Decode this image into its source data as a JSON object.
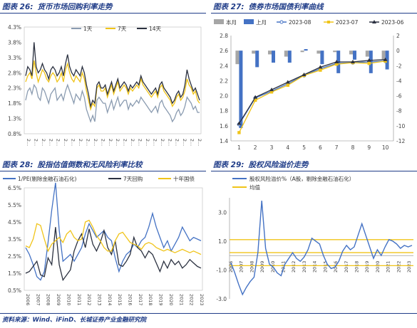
{
  "source_note": "资料来源：Wind、iFinD、长城证券产业金融研究院",
  "panels": {
    "p26": {
      "num": "图表 26:",
      "title": "货币市场回购利率走势"
    },
    "p27": {
      "num": "图表 27:",
      "title": "债券市场国债利率曲线"
    },
    "p28": {
      "num": "图表 28:",
      "title": "股指估值倒数和无风险利率比较"
    },
    "p29": {
      "num": "图表 29:",
      "title": "股权风险溢价走势"
    }
  },
  "chart_data": [
    {
      "id": "repo",
      "type": "line",
      "title": "货币市场回购利率走势",
      "ylim": [
        0.8,
        4.3
      ],
      "y_ticks": [
        "4.3%",
        "3.8%",
        "3.3%",
        "2.8%",
        "2.3%",
        "1.8%",
        "1.3%",
        "0.8%"
      ],
      "y_tick_values": [
        4.3,
        3.8,
        3.3,
        2.8,
        2.3,
        1.8,
        1.3,
        0.8
      ],
      "x_tick_label": "2...",
      "x_tick_count": 24,
      "legend_position": "top-center",
      "series": [
        {
          "name": "1天",
          "color": "#8a9bb0",
          "values": [
            1.9,
            2.2,
            2.3,
            2.1,
            2.4,
            2.3,
            2.0,
            1.9,
            2.3,
            2.2,
            2.0,
            1.8,
            2.1,
            2.2,
            2.3,
            1.9,
            2.0,
            2.1,
            1.9,
            2.2,
            2.4,
            2.2,
            2.0,
            1.8,
            2.1,
            2.0,
            1.9,
            2.2,
            2.0,
            1.6,
            1.4,
            1.2,
            1.4,
            1.2,
            1.9,
            2.0,
            1.9,
            1.8,
            1.8,
            1.5,
            1.7,
            1.9,
            1.6,
            1.8,
            2.0,
            1.7,
            1.8,
            1.9,
            1.9,
            1.6,
            1.8,
            1.7,
            1.8,
            1.9,
            1.8,
            2.0,
            1.9,
            1.8,
            1.7,
            1.6,
            1.5,
            1.6,
            1.7,
            1.5,
            1.8,
            1.9,
            1.7,
            1.6,
            1.5,
            1.4,
            1.2,
            1.3,
            1.5,
            1.6,
            1.4,
            1.5,
            1.7,
            2.0,
            1.9,
            1.8,
            1.6,
            1.7,
            1.5,
            1.5
          ]
        },
        {
          "name": "7天",
          "color": "#f0c419",
          "values": [
            2.5,
            2.7,
            2.8,
            2.6,
            3.2,
            2.8,
            2.5,
            2.7,
            2.9,
            2.8,
            2.6,
            2.5,
            2.7,
            2.8,
            2.7,
            2.5,
            2.6,
            2.8,
            2.5,
            2.9,
            3.1,
            2.8,
            2.6,
            2.5,
            2.7,
            2.6,
            2.5,
            2.8,
            2.6,
            2.2,
            1.9,
            1.6,
            1.8,
            1.7,
            2.3,
            2.4,
            2.2,
            2.2,
            2.3,
            2.0,
            2.2,
            2.4,
            2.1,
            2.3,
            2.5,
            2.2,
            2.3,
            2.4,
            2.3,
            2.1,
            2.3,
            2.2,
            2.3,
            2.4,
            2.3,
            2.6,
            2.4,
            2.3,
            2.2,
            2.1,
            2.0,
            2.1,
            2.2,
            2.0,
            2.3,
            2.4,
            2.2,
            2.1,
            2.0,
            1.9,
            1.7,
            1.8,
            2.0,
            2.1,
            1.9,
            2.0,
            2.2,
            2.6,
            2.4,
            2.3,
            2.1,
            2.2,
            1.9,
            1.8
          ]
        },
        {
          "name": "14天",
          "color": "#2b3140",
          "values": [
            2.7,
            3.0,
            2.9,
            2.7,
            3.8,
            3.0,
            2.8,
            2.9,
            3.1,
            2.9,
            2.8,
            2.6,
            2.9,
            3.0,
            2.9,
            2.7,
            2.8,
            3.0,
            2.7,
            3.1,
            3.4,
            3.0,
            2.8,
            2.7,
            2.9,
            2.8,
            2.7,
            3.0,
            2.8,
            2.4,
            2.1,
            1.7,
            1.9,
            1.8,
            2.4,
            2.5,
            2.3,
            2.3,
            2.4,
            2.1,
            2.3,
            2.5,
            2.2,
            2.4,
            2.6,
            2.3,
            2.4,
            2.5,
            2.4,
            2.2,
            2.4,
            2.3,
            2.4,
            2.5,
            2.4,
            2.7,
            2.5,
            2.4,
            2.3,
            2.2,
            2.1,
            2.2,
            2.3,
            2.1,
            2.4,
            2.5,
            2.3,
            2.2,
            2.1,
            2.0,
            1.8,
            1.9,
            2.1,
            2.2,
            2.0,
            2.1,
            2.4,
            2.9,
            2.6,
            2.4,
            2.2,
            2.3,
            2.1,
            1.9
          ]
        }
      ]
    },
    {
      "id": "treasury",
      "type": "line",
      "title": "债券市场国债利率曲线",
      "categories": [
        "1",
        "2",
        "3",
        "4",
        "5",
        "6",
        "7",
        "8",
        "9",
        "10"
      ],
      "ylim_left": [
        1.4,
        2.8
      ],
      "ylim_right": [
        -12,
        2
      ],
      "y_ticks_left": [
        "2.8",
        "2.6",
        "2.4",
        "2.2",
        "2.0",
        "1.8",
        "1.6",
        "1.4"
      ],
      "y_tick_values_left": [
        2.8,
        2.6,
        2.4,
        2.2,
        2.0,
        1.8,
        1.6,
        1.4
      ],
      "y_ticks_right": [
        "2",
        "0",
        "-2",
        "-4",
        "-6",
        "-8",
        "-10",
        "-12"
      ],
      "y_tick_values_right": [
        2,
        0,
        -2,
        -4,
        -6,
        -8,
        -10,
        -12
      ],
      "legend_position": "top",
      "bars": [
        {
          "name": "本月",
          "color": "#a6a6a6",
          "values": [
            -1.8,
            -0.4,
            -0.5,
            -0.8,
            -0.2,
            -0.4,
            -0.2,
            -0.5,
            -0.8,
            -1.2
          ]
        },
        {
          "name": "上月",
          "color": "#4472c4",
          "values": [
            -10.3,
            -2.2,
            -1.6,
            -1.6,
            0.2,
            -1.8,
            -3.0,
            -1.2,
            -3.0,
            -2.5
          ]
        }
      ],
      "series": [
        {
          "name": "2023-08",
          "color": "#4472c4",
          "values": [
            1.62,
            1.97,
            2.06,
            2.16,
            2.27,
            2.36,
            2.43,
            2.44,
            2.45,
            2.46
          ]
        },
        {
          "name": "2023-07",
          "color": "#f0c419",
          "values": [
            1.51,
            1.94,
            2.05,
            2.14,
            2.27,
            2.34,
            2.42,
            2.44,
            2.43,
            2.46
          ]
        },
        {
          "name": "2023-06",
          "color": "#2b3140",
          "values": [
            1.63,
            1.98,
            2.08,
            2.18,
            2.28,
            2.38,
            2.45,
            2.45,
            2.47,
            2.48
          ]
        }
      ]
    },
    {
      "id": "valuation",
      "type": "line",
      "title": "股指估值倒数和无风险利率比较",
      "ylim": [
        0.5,
        6.5
      ],
      "y_ticks": [
        "6.5%",
        "5.5%",
        "4.5%",
        "3.5%",
        "2.5%",
        "1.5%",
        "0.5%"
      ],
      "y_tick_values": [
        6.5,
        5.5,
        4.5,
        3.5,
        2.5,
        1.5,
        0.5
      ],
      "x_labels": [
        "2006",
        "2007",
        "2008",
        "2009",
        "2010",
        "2011",
        "2012",
        "2013",
        "2014",
        "2015",
        "2016",
        "2017",
        "2018",
        "2019",
        "2020",
        "2021",
        "2022",
        "2023"
      ],
      "legend_position": "top",
      "series": [
        {
          "name": "1/PE(剔除金融石油石化)",
          "color": "#4472c4",
          "values": [
            3.0,
            2.6,
            2.0,
            1.3,
            1.1,
            1.6,
            3.3,
            5.2,
            6.8,
            4.0,
            2.2,
            2.4,
            2.6,
            2.2,
            2.6,
            3.0,
            3.8,
            4.4,
            4.0,
            3.6,
            3.8,
            4.0,
            3.6,
            3.4,
            2.4,
            1.6,
            2.2,
            2.6,
            2.8,
            3.2,
            3.0,
            3.4,
            3.6,
            4.2,
            5.0,
            4.2,
            3.6,
            3.0,
            3.4,
            2.8,
            3.2,
            3.6,
            4.2,
            3.8,
            3.4,
            3.6,
            3.5,
            3.4
          ]
        },
        {
          "name": "7天回购",
          "color": "#2b3140",
          "values": [
            1.5,
            1.6,
            1.9,
            2.2,
            1.4,
            1.3,
            2.4,
            2.0,
            4.2,
            2.0,
            1.1,
            1.4,
            1.7,
            2.8,
            3.4,
            3.8,
            3.0,
            4.1,
            3.2,
            2.8,
            3.3,
            4.0,
            3.0,
            2.6,
            3.4,
            2.0,
            1.9,
            2.2,
            2.6,
            3.6,
            3.0,
            2.8,
            2.4,
            2.8,
            2.6,
            2.1,
            1.6,
            2.2,
            1.8,
            2.3,
            2.0,
            2.2,
            1.8,
            2.0,
            2.3,
            2.1,
            1.9,
            1.8
          ]
        },
        {
          "name": "十年国债",
          "color": "#f0c419",
          "values": [
            3.1,
            3.0,
            3.5,
            4.4,
            4.3,
            3.5,
            2.8,
            3.2,
            3.4,
            3.6,
            3.3,
            3.8,
            4.0,
            3.6,
            3.4,
            3.5,
            4.5,
            4.6,
            4.2,
            3.7,
            3.4,
            3.0,
            2.8,
            2.8,
            3.4,
            3.8,
            3.9,
            3.6,
            3.3,
            3.2,
            3.1,
            2.9,
            3.2,
            3.3,
            3.2,
            3.0,
            2.9,
            2.8,
            2.9,
            2.8,
            2.7,
            2.8,
            2.9,
            2.8,
            2.7,
            2.8,
            2.7,
            2.6
          ]
        }
      ]
    },
    {
      "id": "erp",
      "type": "line",
      "title": "股权风险溢价走势",
      "ylim": [
        -3.0,
        4.0
      ],
      "y_ticks": [
        "3.0",
        "1.0",
        "-1.0",
        "-3.0"
      ],
      "y_tick_values": [
        3.0,
        1.0,
        -1.0,
        -3.0
      ],
      "x_labels": [
        "2006",
        "2007",
        "2008",
        "2009",
        "2010",
        "2011",
        "2012",
        "2013",
        "2014",
        "2015",
        "2016",
        "2017",
        "2018",
        "2019",
        "2020",
        "2021",
        "2022",
        "2023"
      ],
      "legend_position": "top-left",
      "reference_lines": [
        1.1,
        0.2,
        -0.7
      ],
      "series": [
        {
          "name": "股权风险溢价%（A股，剔除金融石油石化）",
          "color": "#4472c4",
          "values": [
            -0.5,
            -1.2,
            -2.0,
            -2.7,
            -2.2,
            -1.8,
            -1.5,
            0.2,
            3.8,
            0.5,
            -0.6,
            -0.8,
            -1.2,
            -1.4,
            -0.6,
            -0.2,
            0.2,
            -0.2,
            -0.4,
            -0.1,
            0.4,
            1.2,
            1.0,
            0.8,
            0.0,
            -0.6,
            -0.9,
            -0.8,
            -0.4,
            0.3,
            0.7,
            0.4,
            0.6,
            1.4,
            2.2,
            1.4,
            0.6,
            -0.2,
            0.4,
            0.0,
            0.6,
            1.1,
            1.0,
            0.8,
            0.5,
            0.7,
            0.6,
            0.7
          ]
        },
        {
          "name": "均值",
          "color": "#f0c419",
          "values": []
        }
      ]
    }
  ]
}
